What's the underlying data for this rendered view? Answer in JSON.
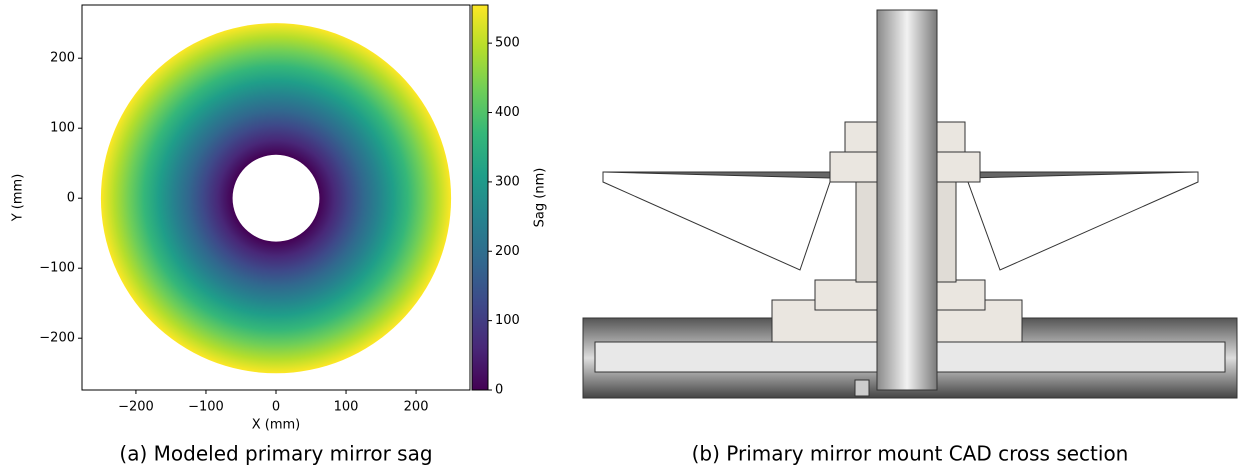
{
  "chart_data": {
    "type": "annulus",
    "xlabel": "X (mm)",
    "ylabel": "Y (mm)",
    "xlim": [
      -277,
      277
    ],
    "ylim": [
      -274,
      276
    ],
    "xticks": [
      {
        "value": -200,
        "label": "−200"
      },
      {
        "value": -100,
        "label": "−100"
      },
      0,
      100,
      200
    ],
    "yticks": [
      {
        "value": -200,
        "label": "−200"
      },
      {
        "value": -100,
        "label": "−100"
      },
      0,
      100,
      200
    ],
    "radii": [
      62,
      250
    ],
    "sag": [
      0,
      550
    ],
    "colorbar_label": "Sag (nm)",
    "clim": [
      0,
      555
    ],
    "cticks": [
      0,
      100,
      200,
      300,
      400,
      500
    ],
    "colormap": [
      "#440154",
      "#482878",
      "#3e4989",
      "#31688e",
      "#26828e",
      "#1f9e89",
      "#35b779",
      "#6ece58",
      "#b5de2b",
      "#fde725"
    ]
  },
  "captions": [
    "(a) Modeled primary mirror sag",
    "(b) Primary mirror mount CAD cross section"
  ]
}
